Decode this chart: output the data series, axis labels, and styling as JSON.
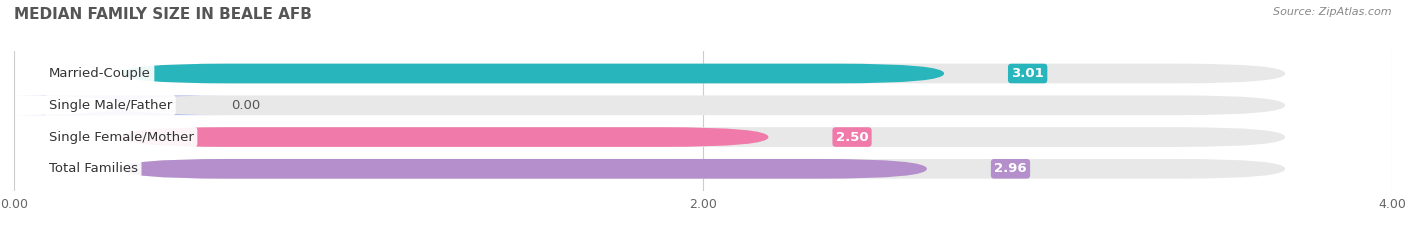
{
  "title": "MEDIAN FAMILY SIZE IN BEALE AFB",
  "source": "Source: ZipAtlas.com",
  "categories": [
    "Married-Couple",
    "Single Male/Father",
    "Single Female/Mother",
    "Total Families"
  ],
  "values": [
    3.01,
    0.0,
    2.5,
    2.96
  ],
  "bar_colors": [
    "#29b5bc",
    "#aab4e8",
    "#f07aaa",
    "#b48fcc"
  ],
  "xlim": [
    0,
    4.0
  ],
  "xticks": [
    0.0,
    2.0,
    4.0
  ],
  "xtick_labels": [
    "0.00",
    "2.00",
    "4.00"
  ],
  "background_color": "#ffffff",
  "bar_background_color": "#e8e8e8",
  "label_fontsize": 9.5,
  "value_fontsize": 9.5,
  "title_fontsize": 11,
  "bar_height": 0.62,
  "single_male_bar_width": 0.55
}
